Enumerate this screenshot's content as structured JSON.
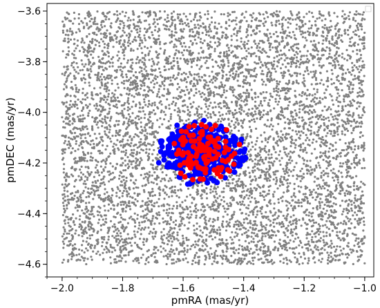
{
  "chart_data": {
    "type": "scatter",
    "title": "",
    "xlabel": "pmRA (mas/yr)",
    "ylabel": "pmDEC (mas/yr)",
    "xlim": [
      -2.05,
      -0.97
    ],
    "ylim": [
      -4.65,
      -3.57
    ],
    "x_ticks": [
      -2.0,
      -1.8,
      -1.6,
      -1.4,
      -1.2,
      -1.0
    ],
    "x_tick_labels": [
      "−2.0",
      "−1.8",
      "−1.6",
      "−1.4",
      "−1.2",
      "−1.0"
    ],
    "y_ticks": [
      -3.6,
      -3.8,
      -4.0,
      -4.2,
      -4.4,
      -4.6
    ],
    "y_tick_labels": [
      "−3.6",
      "−3.8",
      "−4.0",
      "−4.2",
      "−4.4",
      "−4.6"
    ],
    "grid": false,
    "legend": "top-right (empty)",
    "field": {
      "color": "#808080",
      "count": 6500,
      "x_range": [
        -2.0,
        -1.0
      ],
      "y_range": [
        -4.6,
        -3.6
      ]
    },
    "cluster_blue": {
      "color": "#0000ff",
      "count": 400,
      "center": [
        -1.54,
        -4.16
      ],
      "spread": [
        0.075,
        0.065
      ]
    },
    "cluster_red": {
      "color": "#ff0000",
      "count": 110,
      "center": [
        -1.53,
        -4.16
      ],
      "spread": [
        0.065,
        0.06
      ]
    },
    "colors": {
      "field": "#808080",
      "members_blue": "#0000ff",
      "members_red": "#ff0000",
      "axes": "#000000"
    }
  }
}
